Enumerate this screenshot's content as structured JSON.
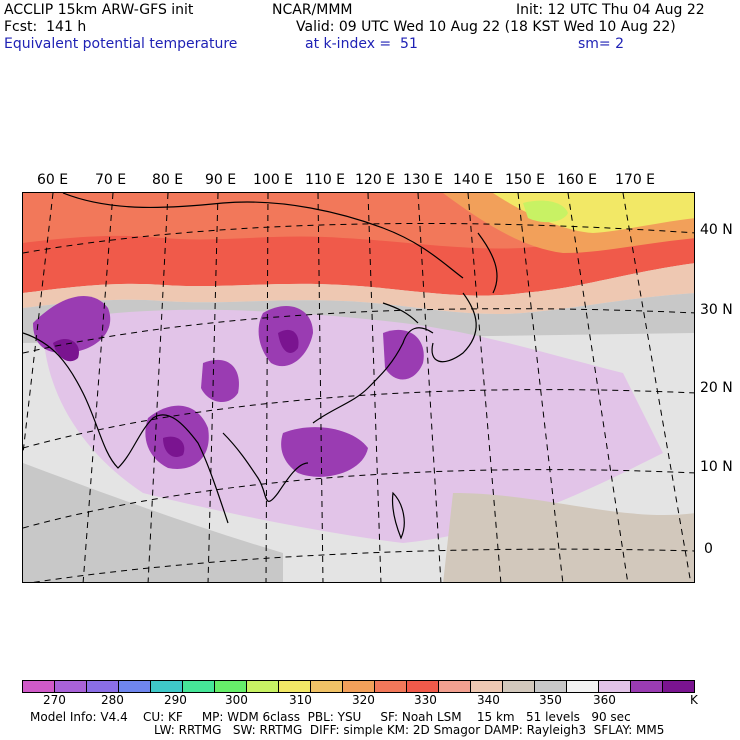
{
  "header": {
    "model_title": "ACCLIP 15km ARW-GFS init",
    "forecast": "Fcst:  141 h",
    "field_name": "Equivalent potential temperature",
    "org": "NCAR/MMM",
    "init_time": "Init: 12 UTC Thu 04 Aug 22",
    "valid_time": "Valid: 09 UTC Wed 10 Aug 22 (18 KST Wed 10 Aug 22)",
    "level": "at k-index =  51",
    "smoothing": "sm= 2"
  },
  "map": {
    "lon_labels": [
      "60 E",
      "70 E",
      "80 E",
      "90 E",
      "100 E",
      "110 E",
      "120 E",
      "130 E",
      "140 E",
      "150 E",
      "160 E",
      "170 E"
    ],
    "lat_labels": [
      "40 N",
      "30 N",
      "20 N",
      "10 N",
      "0"
    ]
  },
  "colorbar": {
    "unit": "K",
    "tick_labels": [
      "270",
      "280",
      "290",
      "300",
      "310",
      "320",
      "330",
      "340",
      "350",
      "360"
    ],
    "colors": [
      "#d05ac8",
      "#a862d8",
      "#8a6ee6",
      "#6f86ee",
      "#3fc8c8",
      "#46e698",
      "#66ee6a",
      "#c8f264",
      "#f2e866",
      "#f0c266",
      "#f2a05a",
      "#f2785a",
      "#f05a4a",
      "#f2a090",
      "#eec8b2",
      "#d2c8bc",
      "#c8c8c8",
      "#f2f2f2",
      "#e2c4e8",
      "#9a3cb2",
      "#7a1490"
    ]
  },
  "footer": {
    "line1": "Model Info: V4.4    CU: KF     MP: WDM 6class  PBL: YSU     SF: Noah LSM    15 km   51 levels   90 sec",
    "line2": "LW: RRTMG   SW: RRTMG  DIFF: simple KM: 2D Smagor DAMP: Rayleigh3  SFLAY: MM5"
  }
}
